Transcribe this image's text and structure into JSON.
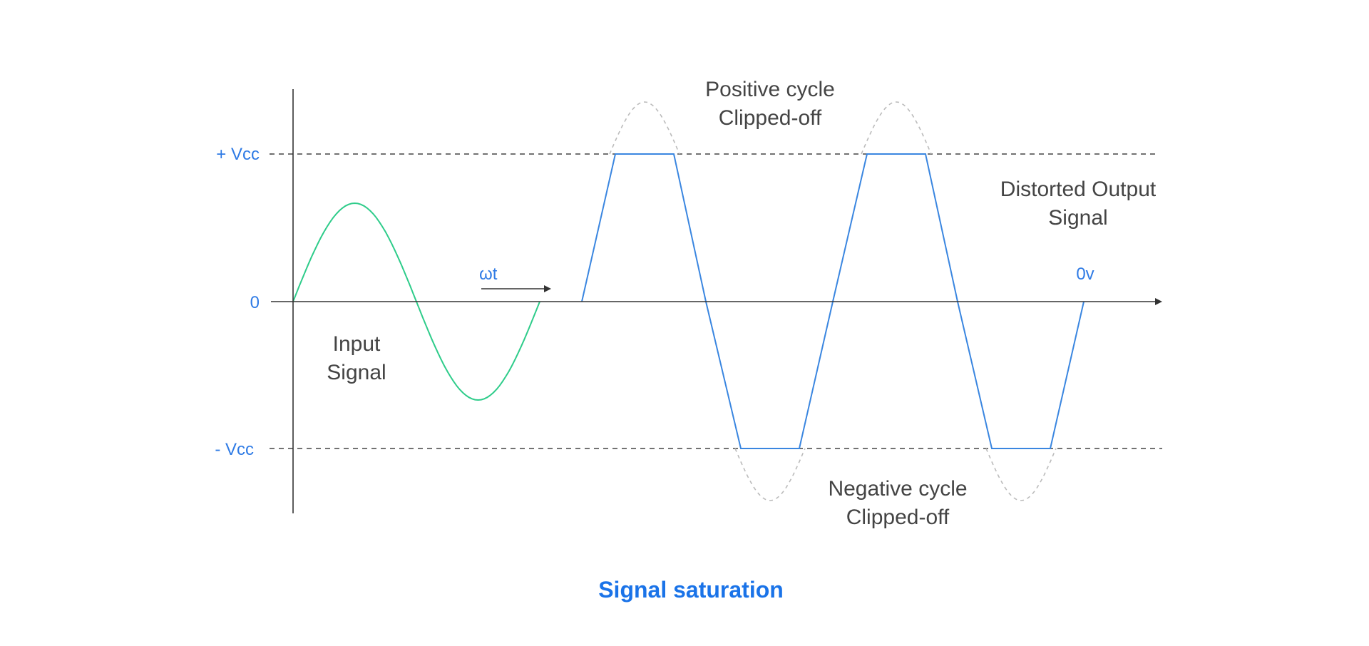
{
  "title": "Signal saturation",
  "levels": {
    "positive": "+ Vcc",
    "zero": "0",
    "negative": "- Vcc"
  },
  "labels": {
    "omega_t": "ωt",
    "zero_volt": "0v",
    "input_line1": "Input",
    "input_line2": "Signal",
    "positive_clip_line1": "Positive cycle",
    "positive_clip_line2": "Clipped-off",
    "negative_clip_line1": "Negative cycle",
    "negative_clip_line2": "Clipped-off",
    "output_line1": "Distorted Output",
    "output_line2": "Signal"
  },
  "colors": {
    "input_wave": "#2ecc8a",
    "output_wave": "#3a86e0",
    "ghost_wave": "#bbbbbb",
    "axis": "#333333",
    "accent": "#1a73e8"
  }
}
